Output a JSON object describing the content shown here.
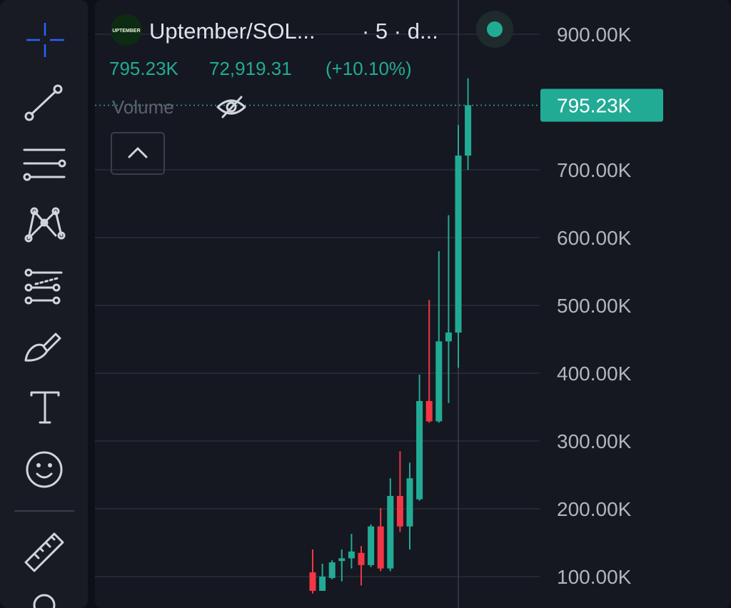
{
  "header": {
    "logo": "UPTEMBER",
    "symbol": "Uptember/SOL...",
    "interval": "· 5 · d...",
    "change": "72,919.31",
    "change_pct": "(+10.10%)",
    "volume_label": "Volume"
  },
  "chart_data": {
    "type": "candlestick",
    "categories": [
      null,
      null,
      null,
      null,
      null,
      null,
      null,
      null,
      null,
      null,
      null,
      null,
      null,
      null,
      null,
      null,
      null
    ],
    "open": [
      106300,
      79000,
      98000,
      123000,
      127000,
      135000,
      117000,
      174000,
      112000,
      219000,
      174000,
      214000,
      359000,
      329000,
      447000,
      460000,
      721000
    ],
    "high": [
      140000,
      119000,
      124000,
      140000,
      163000,
      145000,
      177000,
      201000,
      245000,
      285000,
      268000,
      398000,
      508000,
      580000,
      633000,
      766000,
      835000
    ],
    "low": [
      75000,
      79000,
      96000,
      93000,
      112000,
      87000,
      114000,
      108000,
      108000,
      166000,
      140000,
      212000,
      327000,
      327000,
      356000,
      408000,
      700000
    ],
    "close": [
      79000,
      100000,
      121000,
      127000,
      137000,
      117000,
      174000,
      112000,
      219000,
      174000,
      245000,
      359000,
      329000,
      447000,
      460000,
      721000,
      795230
    ],
    "up_color": "#22ab94",
    "down_color": "#f23645",
    "ylim": [
      53700,
      950500
    ],
    "yticks": [
      {
        "value": 100000,
        "label": "100.00K"
      },
      {
        "value": 200000,
        "label": "200.00K"
      },
      {
        "value": 300000,
        "label": "300.00K"
      },
      {
        "value": 400000,
        "label": "400.00K"
      },
      {
        "value": 500000,
        "label": "500.00K"
      },
      {
        "value": 600000,
        "label": "600.00K"
      },
      {
        "value": 700000,
        "label": "700.00K"
      },
      {
        "value": 900000,
        "label": "900.00K"
      }
    ],
    "last_price": {
      "value": 795230,
      "label": "795.23K"
    },
    "grid": true
  }
}
